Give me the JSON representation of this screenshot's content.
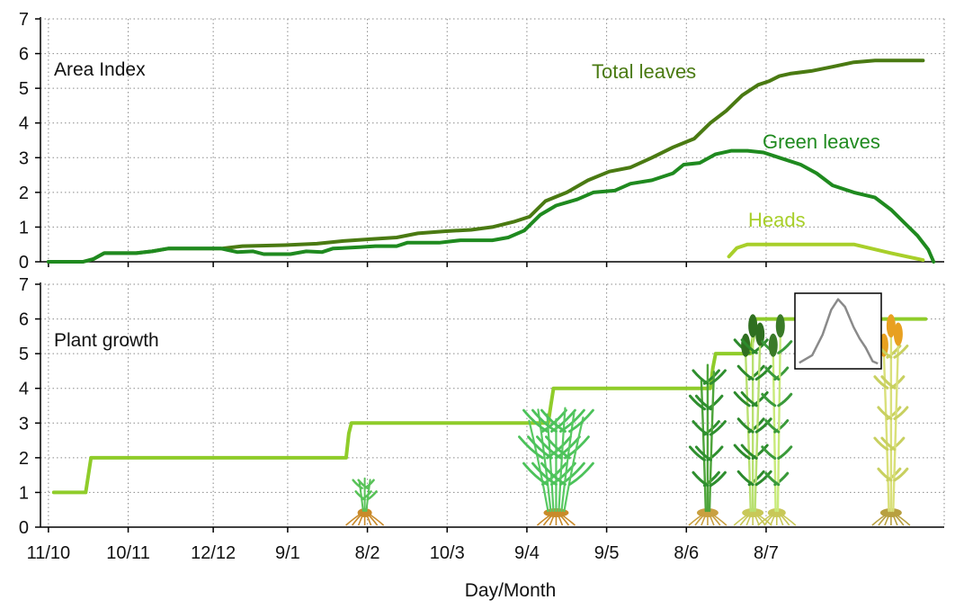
{
  "chart_data": [
    {
      "type": "line",
      "panel_label": "Area Index",
      "ylim": [
        0,
        7
      ],
      "yticks": [
        "0",
        "1",
        "2",
        "3",
        "4",
        "5",
        "6",
        "7"
      ],
      "grid": true,
      "series": [
        {
          "name": "Total leaves",
          "color": "#4a7a12",
          "points": [
            [
              1,
              0
            ],
            [
              14,
              0
            ],
            [
              18,
              0.08
            ],
            [
              22,
              0.25
            ],
            [
              34,
              0.25
            ],
            [
              40,
              0.3
            ],
            [
              46,
              0.38
            ],
            [
              56,
              0.38
            ],
            [
              66,
              0.38
            ],
            [
              74,
              0.45
            ],
            [
              90,
              0.48
            ],
            [
              102,
              0.52
            ],
            [
              112,
              0.6
            ],
            [
              122,
              0.65
            ],
            [
              132,
              0.7
            ],
            [
              140,
              0.82
            ],
            [
              150,
              0.88
            ],
            [
              160,
              0.92
            ],
            [
              168,
              1.0
            ],
            [
              176,
              1.15
            ],
            [
              182,
              1.3
            ],
            [
              188,
              1.75
            ],
            [
              196,
              2.0
            ],
            [
              204,
              2.35
            ],
            [
              212,
              2.6
            ],
            [
              220,
              2.72
            ],
            [
              228,
              3.0
            ],
            [
              236,
              3.3
            ],
            [
              244,
              3.55
            ],
            [
              250,
              4.0
            ],
            [
              256,
              4.35
            ],
            [
              262,
              4.8
            ],
            [
              268,
              5.1
            ],
            [
              272,
              5.2
            ],
            [
              276,
              5.35
            ],
            [
              280,
              5.42
            ],
            [
              288,
              5.5
            ],
            [
              296,
              5.62
            ],
            [
              304,
              5.75
            ],
            [
              312,
              5.8
            ],
            [
              322,
              5.8
            ],
            [
              330,
              5.8
            ]
          ]
        },
        {
          "name": "Green leaves",
          "color": "#1f8a1f",
          "points": [
            [
              1,
              0
            ],
            [
              14,
              0
            ],
            [
              18,
              0.08
            ],
            [
              22,
              0.25
            ],
            [
              34,
              0.25
            ],
            [
              40,
              0.3
            ],
            [
              46,
              0.38
            ],
            [
              56,
              0.38
            ],
            [
              66,
              0.38
            ],
            [
              72,
              0.28
            ],
            [
              78,
              0.3
            ],
            [
              82,
              0.22
            ],
            [
              92,
              0.22
            ],
            [
              98,
              0.3
            ],
            [
              104,
              0.28
            ],
            [
              108,
              0.38
            ],
            [
              118,
              0.42
            ],
            [
              124,
              0.45
            ],
            [
              132,
              0.45
            ],
            [
              136,
              0.55
            ],
            [
              148,
              0.55
            ],
            [
              156,
              0.62
            ],
            [
              168,
              0.62
            ],
            [
              174,
              0.7
            ],
            [
              180,
              0.9
            ],
            [
              186,
              1.35
            ],
            [
              192,
              1.62
            ],
            [
              200,
              1.8
            ],
            [
              206,
              2.0
            ],
            [
              214,
              2.05
            ],
            [
              220,
              2.25
            ],
            [
              228,
              2.35
            ],
            [
              236,
              2.55
            ],
            [
              240,
              2.8
            ],
            [
              246,
              2.85
            ],
            [
              252,
              3.1
            ],
            [
              258,
              3.2
            ],
            [
              264,
              3.2
            ],
            [
              270,
              3.15
            ],
            [
              276,
              3.0
            ],
            [
              284,
              2.8
            ],
            [
              290,
              2.55
            ],
            [
              296,
              2.2
            ],
            [
              304,
              2.0
            ],
            [
              312,
              1.85
            ],
            [
              318,
              1.5
            ],
            [
              324,
              1.05
            ],
            [
              328,
              0.75
            ],
            [
              332,
              0.35
            ],
            [
              334,
              0
            ]
          ]
        },
        {
          "name": "Heads",
          "color": "#a8cf2a",
          "points": [
            [
              257,
              0.15
            ],
            [
              260,
              0.4
            ],
            [
              264,
              0.5
            ],
            [
              304,
              0.5
            ],
            [
              318,
              0.25
            ],
            [
              330,
              0.05
            ]
          ]
        }
      ]
    },
    {
      "type": "line",
      "panel_label": "Plant growth",
      "ylim": [
        0,
        7
      ],
      "yticks": [
        "0",
        "1",
        "2",
        "3",
        "4",
        "5",
        "6",
        "7"
      ],
      "grid": true,
      "series": [
        {
          "color": "#8fcc2a",
          "points": [
            [
              3,
              1
            ],
            [
              15,
              1
            ],
            [
              17,
              2
            ],
            [
              113,
              2
            ],
            [
              114,
              2.7
            ],
            [
              115,
              3
            ],
            [
              189,
              3
            ],
            [
              190,
              3.5
            ],
            [
              191,
              4
            ],
            [
              250,
              4
            ],
            [
              251,
              4.6
            ],
            [
              252,
              5
            ],
            [
              265,
              5
            ],
            [
              266,
              5.4
            ],
            [
              267,
              6
            ],
            [
              331,
              6
            ]
          ]
        }
      ],
      "icons": [
        "plant-seedling-icon",
        "plant-tillering-icon",
        "plant-stem-elongation-icon",
        "plant-booting-icon",
        "plant-heading-icon",
        "plant-ripening-icon",
        "bell-curve-icon"
      ]
    }
  ],
  "x_axis": {
    "label": "Day/Month",
    "range_days": [
      -2,
      338
    ],
    "ticks": [
      {
        "label": "11/10",
        "day": 1
      },
      {
        "label": "10/11",
        "day": 31
      },
      {
        "label": "12/12",
        "day": 63
      },
      {
        "label": "9/1",
        "day": 91
      },
      {
        "label": "8/2",
        "day": 121
      },
      {
        "label": "10/3",
        "day": 151
      },
      {
        "label": "9/4",
        "day": 181
      },
      {
        "label": "9/5",
        "day": 211
      },
      {
        "label": "8/6",
        "day": 241
      },
      {
        "label": "8/7",
        "day": 271
      }
    ]
  }
}
